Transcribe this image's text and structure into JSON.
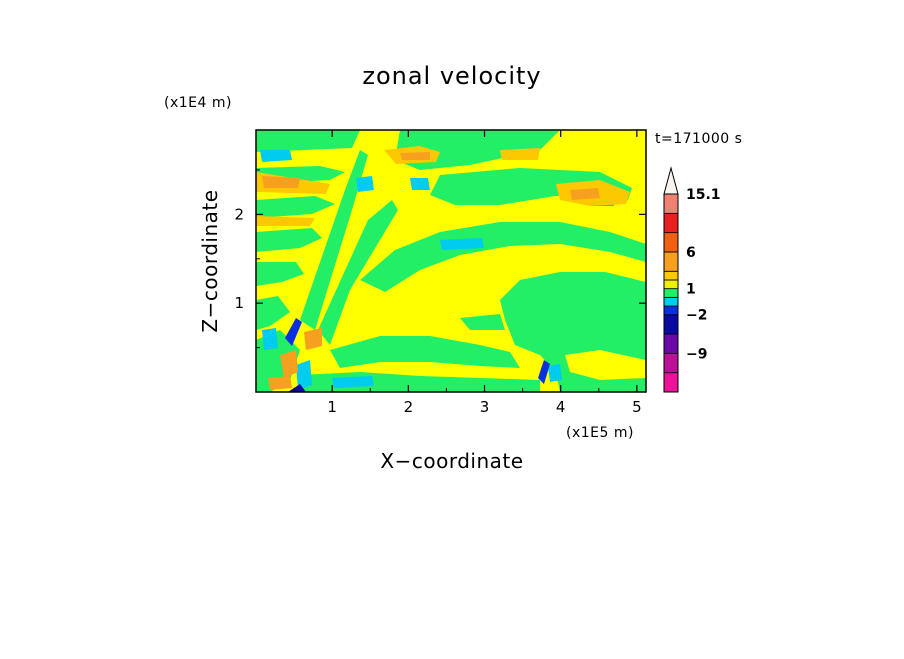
{
  "chart_data": {
    "type": "heatmap",
    "title": "zonal velocity",
    "xlabel": "X−coordinate",
    "ylabel": "Z−coordinate",
    "x_scale_label": "(x1E5 m)",
    "y_scale_label": "(x1E4 m)",
    "time_label": "t=171000 s",
    "xlim": [
      0,
      5.12
    ],
    "ylim": [
      0,
      2.95
    ],
    "x_ticks": [
      1,
      2,
      3,
      4,
      5
    ],
    "x_tick_labels": [
      "1",
      "2",
      "3",
      "4",
      "5"
    ],
    "y_ticks": [
      1,
      2
    ],
    "y_tick_labels": [
      "1",
      "2"
    ],
    "colorbar": {
      "levels": [
        -15.1,
        -12,
        -9,
        -6,
        -2,
        -1,
        0,
        1,
        2,
        3,
        6,
        9,
        12,
        15.1
      ],
      "colors": [
        "#ee1199",
        "#bb1199",
        "#6a0aa8",
        "#0a0aa0",
        "#0a30e0",
        "#00ccf0",
        "#22ee66",
        "#eef200",
        "#fcc800",
        "#f7a020",
        "#f06010",
        "#ea2020",
        "#f08070",
        "#f4b8b0"
      ],
      "extend_top_color": "#f8f4f0",
      "tick_labels": [
        {
          "value": 15.1,
          "label": "15.1"
        },
        {
          "value": 6,
          "label": "6"
        },
        {
          "value": 1,
          "label": "1"
        },
        {
          "value": -2,
          "label": "−2"
        },
        {
          "value": -9,
          "label": "−9"
        }
      ]
    },
    "regions": [
      {
        "color": "#ffff00",
        "desc": "background ~0 to 1"
      },
      {
        "color": "#22ee66",
        "desc": "upper-left bands, upper middle band, lower-right region, lower bands"
      },
      {
        "color": "#00ccf0",
        "desc": "small negative patches"
      },
      {
        "color": "#fcc800",
        "desc": "positive bands upper left and upper right"
      },
      {
        "color": "#f7a020",
        "desc": "positive cores"
      },
      {
        "color": "#0a30e0",
        "desc": "strong negative cores near x=0.4 and x=3.75"
      }
    ]
  }
}
